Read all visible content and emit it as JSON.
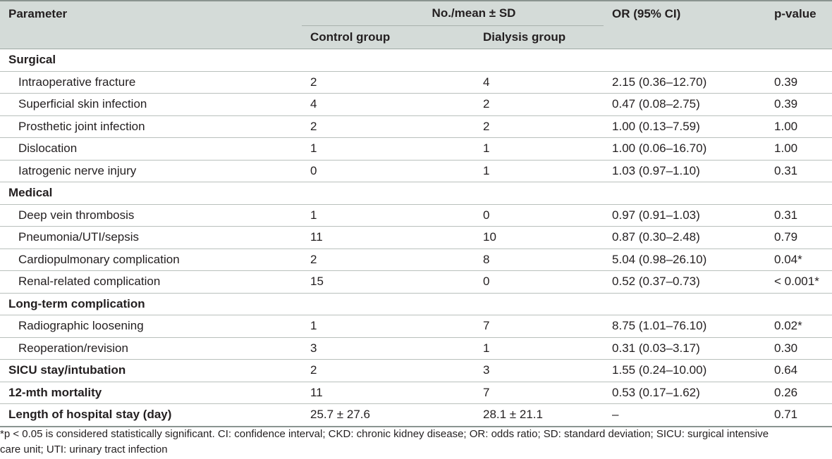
{
  "header": {
    "parameter": "Parameter",
    "group_span": "No./mean ± SD",
    "or_ci": "OR (95% CI)",
    "p_value": "p-value",
    "control": "Control group",
    "dialysis": "Dialysis group"
  },
  "rows": [
    {
      "type": "section",
      "label": "Surgical"
    },
    {
      "type": "item",
      "label": "Intraoperative fracture",
      "control": "2",
      "dialysis": "4",
      "or": "2.15 (0.36–12.70)",
      "p": "0.39"
    },
    {
      "type": "item",
      "label": "Superficial skin infection",
      "control": "4",
      "dialysis": "2",
      "or": "0.47 (0.08–2.75)",
      "p": "0.39"
    },
    {
      "type": "item",
      "label": "Prosthetic joint infection",
      "control": "2",
      "dialysis": "2",
      "or": "1.00 (0.13–7.59)",
      "p": "1.00"
    },
    {
      "type": "item",
      "label": "Dislocation",
      "control": "1",
      "dialysis": "1",
      "or": "1.00 (0.06–16.70)",
      "p": "1.00"
    },
    {
      "type": "item",
      "label": "Iatrogenic nerve injury",
      "control": "0",
      "dialysis": "1",
      "or": "1.03 (0.97–1.10)",
      "p": "0.31"
    },
    {
      "type": "section",
      "label": "Medical"
    },
    {
      "type": "item",
      "label": "Deep vein thrombosis",
      "control": "1",
      "dialysis": "0",
      "or": "0.97 (0.91–1.03)",
      "p": "0.31"
    },
    {
      "type": "item",
      "label": "Pneumonia/UTI/sepsis",
      "control": "11",
      "dialysis": "10",
      "or": "0.87 (0.30–2.48)",
      "p": "0.79"
    },
    {
      "type": "item",
      "label": "Cardiopulmonary complication",
      "control": "2",
      "dialysis": "8",
      "or": "5.04 (0.98–26.10)",
      "p": "0.04*"
    },
    {
      "type": "item",
      "label": "Renal-related complication",
      "control": "15",
      "dialysis": "0",
      "or": "0.52 (0.37–0.73)",
      "p": "< 0.001*"
    },
    {
      "type": "section",
      "label": "Long-term complication"
    },
    {
      "type": "item",
      "label": "Radiographic loosening",
      "control": "1",
      "dialysis": "7",
      "or": "8.75 (1.01–76.10)",
      "p": "0.02*"
    },
    {
      "type": "item",
      "label": "Reoperation/revision",
      "control": "3",
      "dialysis": "1",
      "or": "0.31 (0.03–3.17)",
      "p": "0.30"
    },
    {
      "type": "bold",
      "label": "SICU stay/intubation",
      "control": "2",
      "dialysis": "3",
      "or": "1.55 (0.24–10.00)",
      "p": "0.64"
    },
    {
      "type": "bold",
      "label": "12-mth mortality",
      "control": "11",
      "dialysis": "7",
      "or": "0.53 (0.17–1.62)",
      "p": "0.26"
    },
    {
      "type": "bold",
      "label": "Length of hospital stay (day)",
      "control": "25.7 ± 27.6",
      "dialysis": "28.1 ± 21.1",
      "or": "–",
      "p": "0.71"
    }
  ],
  "footnote": {
    "line1": "*p < 0.05 is considered statistically significant. CI: confidence interval; CKD: chronic kidney disease; OR: odds ratio; SD: standard deviation; SICU: surgical intensive",
    "line2": "care unit; UTI: urinary tract infection"
  }
}
